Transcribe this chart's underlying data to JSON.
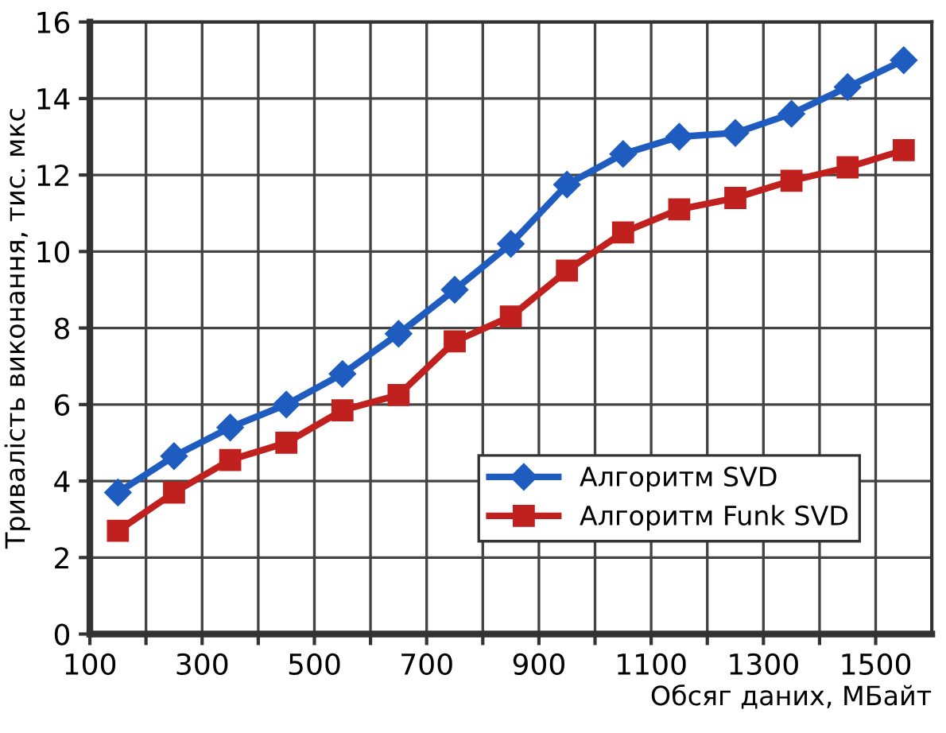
{
  "chart_data": {
    "type": "line",
    "xlabel": "Обсяг даних, МБайт",
    "ylabel": "Тривалість виконання, тис. мкс",
    "x": [
      150,
      250,
      350,
      450,
      550,
      650,
      750,
      850,
      950,
      1050,
      1150,
      1250,
      1350,
      1450,
      1550
    ],
    "series": [
      {
        "name": "Алгоритм SVD",
        "color": "#1f5cbf",
        "marker": "diamond",
        "values": [
          3.7,
          4.65,
          5.4,
          6.0,
          6.8,
          7.85,
          9.0,
          10.2,
          11.75,
          12.55,
          13.0,
          13.1,
          13.6,
          14.3,
          15.0
        ]
      },
      {
        "name": "Алгоритм Funk SVD",
        "color": "#c0201e",
        "marker": "square",
        "values": [
          2.7,
          3.7,
          4.55,
          5.0,
          5.85,
          6.25,
          7.65,
          8.3,
          9.5,
          10.5,
          11.1,
          11.4,
          11.85,
          12.2,
          12.65
        ]
      }
    ],
    "xlim": [
      100,
      1600
    ],
    "xticks": [
      100,
      {
        "value": 200,
        "label": null
      },
      300,
      {
        "value": 400,
        "label": null
      },
      500,
      {
        "value": 600,
        "label": null
      },
      700,
      {
        "value": 800,
        "label": null
      },
      900,
      {
        "value": 1000,
        "label": null
      },
      1100,
      {
        "value": 1200,
        "label": null
      },
      1300,
      {
        "value": 1400,
        "label": null
      },
      1500
    ],
    "ylim": [
      0,
      16
    ],
    "yticks": [
      0,
      2,
      4,
      6,
      8,
      10,
      12,
      14,
      16
    ],
    "grid": true,
    "legend": "bottom right",
    "line_style": "solid"
  }
}
